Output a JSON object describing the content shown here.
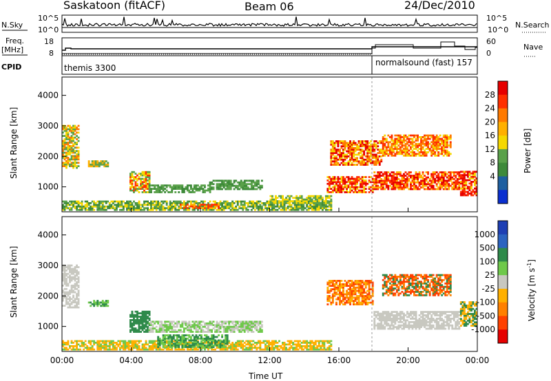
{
  "header": {
    "title": "Saskatoon (fitACF)",
    "beam": "Beam 06",
    "date": "24/Dec/2010"
  },
  "noise_panel": {
    "left_label": "N.Sky",
    "left_ticks": [
      "10^5",
      "10^0"
    ],
    "right_ticks": [
      "10^5",
      "10^0"
    ],
    "right_label": "N.Search"
  },
  "freq_panel": {
    "left_label_1": "Freq.",
    "left_label_2": "[MHz]",
    "left_ticks": [
      "18",
      "8"
    ],
    "right_ticks": [
      "60",
      "0"
    ],
    "right_label": "Nave"
  },
  "cpid_panel": {
    "label": "CPID",
    "segment_1": "themis 3300",
    "segment_2": "normalsound (fast) 157"
  },
  "chart_data": [
    {
      "type": "heatmap",
      "name": "power",
      "ylabel": "Slant Range [km]",
      "yticks": [
        "1000",
        "2000",
        "3000",
        "4000"
      ],
      "ylim": [
        180,
        4600
      ],
      "x_ticks": [
        "00:00",
        "04:00",
        "08:00",
        "12:00",
        "16:00",
        "20:00",
        "00:00"
      ],
      "xlim_hours": [
        0,
        24
      ],
      "colorbar_label": "Power [dB]",
      "colorbar_ticks": [
        "28",
        "24",
        "20",
        "16",
        "12",
        "8",
        "4"
      ],
      "colorbar_colors": [
        "#e60000",
        "#ff3000",
        "#ff7a00",
        "#ffb000",
        "#f5d800",
        "#5aa14a",
        "#3e8a3a",
        "#1e5fa0",
        "#0a2fd0"
      ],
      "regions": [
        {
          "t0": 0.0,
          "t1": 0.9,
          "r0": 1600,
          "r1": 3000,
          "levels": [
            12,
            20,
            8
          ]
        },
        {
          "t0": 1.5,
          "t1": 2.7,
          "r0": 1650,
          "r1": 1850,
          "levels": [
            8,
            16
          ]
        },
        {
          "t0": 3.9,
          "t1": 5.0,
          "r0": 800,
          "r1": 1500,
          "levels": [
            12,
            24,
            8
          ]
        },
        {
          "t0": 5.0,
          "t1": 8.5,
          "r0": 800,
          "r1": 1050,
          "levels": [
            8,
            4
          ]
        },
        {
          "t0": 8.5,
          "t1": 11.5,
          "r0": 900,
          "r1": 1200,
          "levels": [
            8,
            4
          ]
        },
        {
          "t0": 0.0,
          "t1": 15.5,
          "r0": 220,
          "r1": 500,
          "levels": [
            4,
            8,
            12
          ]
        },
        {
          "t0": 6.8,
          "t1": 9.0,
          "r0": 280,
          "r1": 420,
          "levels": [
            16,
            24
          ]
        },
        {
          "t0": 12.0,
          "t1": 15.5,
          "r0": 450,
          "r1": 700,
          "levels": [
            8,
            12
          ]
        },
        {
          "t0": 15.3,
          "t1": 18.0,
          "r0": 800,
          "r1": 1300,
          "levels": [
            12,
            24,
            28
          ]
        },
        {
          "t0": 15.5,
          "t1": 18.5,
          "r0": 1700,
          "r1": 2500,
          "levels": [
            12,
            20,
            28
          ]
        },
        {
          "t0": 18.0,
          "t1": 23.0,
          "r0": 900,
          "r1": 1500,
          "levels": [
            16,
            24,
            28
          ]
        },
        {
          "t0": 18.5,
          "t1": 22.5,
          "r0": 2000,
          "r1": 2700,
          "levels": [
            12,
            20,
            24
          ]
        },
        {
          "t0": 23.0,
          "t1": 24.0,
          "r0": 700,
          "r1": 1500,
          "levels": [
            24,
            28,
            12
          ]
        }
      ]
    },
    {
      "type": "heatmap",
      "name": "velocity",
      "ylabel": "Slant Range [km]",
      "yticks": [
        "1000",
        "2000",
        "3000",
        "4000"
      ],
      "ylim": [
        180,
        4600
      ],
      "x_ticks": [
        "00:00",
        "04:00",
        "08:00",
        "12:00",
        "16:00",
        "20:00",
        "00:00"
      ],
      "xlim_hours": [
        0,
        24
      ],
      "xlabel": "Time UT",
      "colorbar_label": "Velocity [m s^-1]",
      "colorbar_label_main": "Velocity [m s",
      "colorbar_label_sup": "-1",
      "colorbar_label_end": "]",
      "colorbar_ticks": [
        "1000",
        "500",
        "100",
        "25",
        "-25",
        "-100",
        "-500",
        "-1000"
      ],
      "colorbar_colors": [
        "#1e3fb4",
        "#2b63c0",
        "#2e8a4a",
        "#6ec94a",
        "#c8c8c0",
        "#ffb000",
        "#ff8000",
        "#ff4000",
        "#e60000"
      ],
      "regions": [
        {
          "t0": 0.0,
          "t1": 0.9,
          "r0": 1600,
          "r1": 3000,
          "levels": [
            0
          ]
        },
        {
          "t0": 1.5,
          "t1": 2.7,
          "r0": 1650,
          "r1": 1850,
          "levels": [
            60,
            100
          ]
        },
        {
          "t0": 3.9,
          "t1": 5.0,
          "r0": 800,
          "r1": 1500,
          "levels": [
            100,
            300
          ]
        },
        {
          "t0": 5.0,
          "t1": 11.5,
          "r0": 800,
          "r1": 1150,
          "levels": [
            0,
            60
          ]
        },
        {
          "t0": 0.0,
          "t1": 15.5,
          "r0": 220,
          "r1": 500,
          "levels": [
            -100,
            -60,
            60
          ]
        },
        {
          "t0": 5.5,
          "t1": 9.5,
          "r0": 300,
          "r1": 700,
          "levels": [
            60,
            100
          ]
        },
        {
          "t0": 15.3,
          "t1": 18.0,
          "r0": 1700,
          "r1": 2500,
          "levels": [
            -300,
            -100,
            -700
          ]
        },
        {
          "t0": 18.0,
          "t1": 23.0,
          "r0": 900,
          "r1": 1500,
          "levels": [
            0
          ]
        },
        {
          "t0": 18.5,
          "t1": 22.5,
          "r0": 2000,
          "r1": 2700,
          "levels": [
            -300,
            100,
            -700
          ]
        },
        {
          "t0": 23.0,
          "t1": 24.0,
          "r0": 1000,
          "r1": 1800,
          "levels": [
            100,
            -100
          ]
        }
      ]
    }
  ]
}
